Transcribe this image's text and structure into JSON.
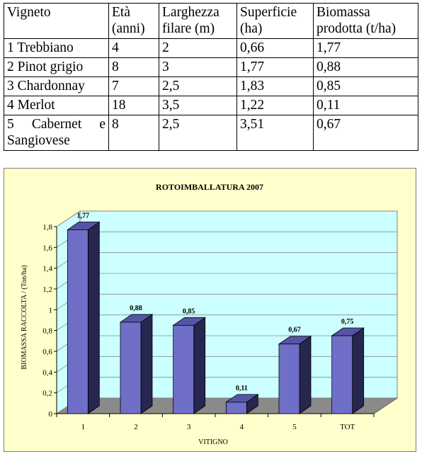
{
  "table": {
    "headers": [
      "Vigneto",
      "Età (anni)",
      "Larghezza filare (m)",
      "Superficie (ha)",
      "Biomassa prodotta (t/ha)"
    ],
    "rows": [
      [
        "1 Trebbiano",
        "4",
        "2",
        "0,66",
        "1,77"
      ],
      [
        "2 Pinot grigio",
        "8",
        "3",
        "1,77",
        "0,88"
      ],
      [
        "3 Chardonnay",
        "7",
        "2,5",
        "1,83",
        "0,85"
      ],
      [
        "4 Merlot",
        "18",
        "3,5",
        "1,22",
        "0,11"
      ],
      [
        "5 Cabernet e Sangiovese",
        "8",
        "2,5",
        "3,51",
        "0,67"
      ]
    ]
  },
  "chart_data": {
    "type": "bar",
    "title": "ROTOIMBALLATURA 2007",
    "xlabel": "VITIGNO",
    "ylabel": "BIOMASSA RACCOLTA / (Ton/ha)",
    "categories": [
      "1",
      "2",
      "3",
      "4",
      "5",
      "TOT"
    ],
    "values": [
      1.77,
      0.88,
      0.85,
      0.11,
      0.67,
      0.75
    ],
    "value_labels": [
      "1,77",
      "0,88",
      "0,85",
      "0,11",
      "0,67",
      "0,75"
    ],
    "ylim": [
      0,
      1.8
    ],
    "yticks": [
      0,
      0.2,
      0.4,
      0.6,
      0.8,
      1,
      1.2,
      1.4,
      1.6,
      1.8
    ],
    "ytick_labels": [
      "0",
      "0,2",
      "0,4",
      "0,6",
      "0,8",
      "1",
      "1,2",
      "1,4",
      "1,6",
      "1,8"
    ],
    "grid": true,
    "legend": "none",
    "colors": {
      "bar_front": "#6f6fc8",
      "bar_side": "#26264f",
      "bar_top": "#5555a8",
      "plot_back": "#ccffff",
      "plot_floor": "#8a8a8a",
      "chart_bg": "#ffffcc"
    }
  }
}
